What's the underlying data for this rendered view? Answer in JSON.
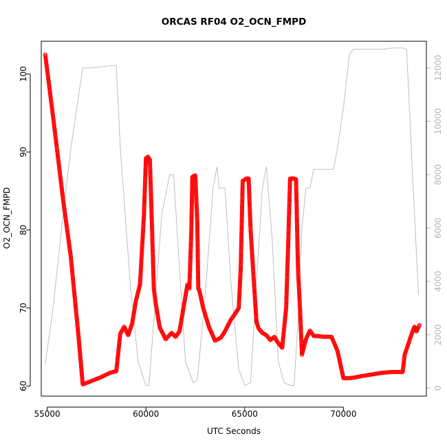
{
  "chart_data": {
    "type": "scatter",
    "title": "ORCAS RF04 O2_OCN_FMPD",
    "xlabel": "UTC Seconds",
    "ylabel": "O2_OCN_FMPD",
    "xlim": [
      54700,
      74200
    ],
    "ylim": [
      58.7,
      104.2
    ],
    "y2lim": [
      -300,
      13000
    ],
    "x_ticks": [
      55000,
      60000,
      65000,
      70000
    ],
    "x_tick_labels": [
      "55000",
      "60000",
      "65000",
      "70000"
    ],
    "y_ticks": [
      60,
      70,
      80,
      90,
      100
    ],
    "y_tick_labels": [
      "60",
      "70",
      "80",
      "90",
      "100"
    ],
    "y2_ticks": [
      0,
      2000,
      4000,
      6000,
      8000,
      10000,
      12000
    ],
    "y2_tick_labels": [
      "0",
      "2000",
      "4000",
      "6000",
      "8000",
      "10000",
      "12000"
    ],
    "grid": false,
    "colors": {
      "primary": "#ff0000",
      "secondary": "#bebebe",
      "frame": "#000000",
      "right_axis": "#b3b3b3"
    },
    "series": [
      {
        "role": "primary",
        "style": "open-circle-markers",
        "x": [
          54900,
          55300,
          55800,
          56200,
          56600,
          56800,
          57200,
          57700,
          58200,
          58500,
          58700,
          58900,
          59100,
          59300,
          59500,
          59700,
          59900,
          60000,
          60100,
          60200,
          60300,
          60400,
          60500,
          60700,
          61000,
          61300,
          61500,
          61700,
          61900,
          62100,
          62200,
          62300,
          62350,
          62400,
          62500,
          62600,
          62650,
          62700,
          62900,
          63200,
          63500,
          63800,
          64000,
          64300,
          64500,
          64700,
          64800,
          64900,
          65100,
          65200,
          65300,
          65500,
          65600,
          65700,
          65900,
          66100,
          66300,
          66500,
          66700,
          66900,
          67100,
          67200,
          67300,
          67500,
          67600,
          67700,
          67800,
          67900,
          68100,
          68300,
          68500,
          68700,
          69000,
          69400,
          69700,
          70000,
          70300,
          70600,
          71000,
          71500,
          72000,
          72500,
          73000,
          73100,
          73300,
          73500,
          73600,
          73700,
          73850
        ],
        "y": [
          102.5,
          94.5,
          84.0,
          76.5,
          66.0,
          60.2,
          60.6,
          61.1,
          61.7,
          61.9,
          66.7,
          67.6,
          66.5,
          68.0,
          71.0,
          73.0,
          82.0,
          89.2,
          89.4,
          89.0,
          81.0,
          72.5,
          70.5,
          67.5,
          66.0,
          66.8,
          66.3,
          67.0,
          70.0,
          73.0,
          72.5,
          80.0,
          86.8,
          86.9,
          87.0,
          81.0,
          72.5,
          72.3,
          70.0,
          67.5,
          65.8,
          66.2,
          67.0,
          68.5,
          69.2,
          70.0,
          75.0,
          86.3,
          86.6,
          86.6,
          80.0,
          72.0,
          68.2,
          67.4,
          66.8,
          66.5,
          65.9,
          66.3,
          65.5,
          64.9,
          70.0,
          78.0,
          86.6,
          86.6,
          86.5,
          75.0,
          70.0,
          64.0,
          66.0,
          67.1,
          66.4,
          66.4,
          66.3,
          66.3,
          64.5,
          61.0,
          61.0,
          61.1,
          61.3,
          61.5,
          61.7,
          61.8,
          61.8,
          64.0,
          65.5,
          67.0,
          67.6,
          67.0,
          67.8
        ]
      },
      {
        "role": "secondary",
        "style": "line",
        "x": [
          54900,
          55300,
          55800,
          56200,
          56800,
          57200,
          57800,
          58500,
          58700,
          59200,
          59600,
          60000,
          60150,
          60400,
          60800,
          61200,
          61400,
          61700,
          62000,
          62400,
          62600,
          63000,
          63400,
          63600,
          63700,
          63900,
          64000,
          64300,
          64700,
          65000,
          65300,
          65600,
          65900,
          66100,
          66400,
          66700,
          67000,
          67300,
          67500,
          67700,
          67900,
          68100,
          68300,
          68500,
          69000,
          69500,
          69700,
          70000,
          70300,
          70500,
          71000,
          72000,
          72500,
          73000,
          73200,
          73500,
          73800
        ],
        "y": [
          900,
          3000,
          6500,
          9000,
          12000,
          12000,
          12050,
          12100,
          9000,
          4000,
          1000,
          100,
          100,
          2500,
          6500,
          8000,
          8000,
          4500,
          1000,
          200,
          300,
          3500,
          7500,
          8300,
          7500,
          7500,
          7500,
          4000,
          700,
          100,
          200,
          4000,
          7500,
          8300,
          5500,
          1000,
          200,
          100,
          100,
          2500,
          6000,
          7500,
          7500,
          8200,
          8200,
          8200,
          9000,
          10500,
          12500,
          12700,
          12700,
          12700,
          12750,
          12750,
          12700,
          8000,
          3500
        ]
      }
    ]
  }
}
